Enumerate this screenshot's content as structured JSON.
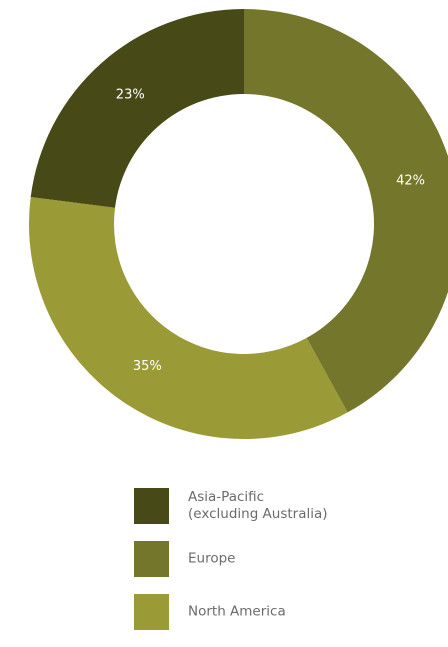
{
  "chart_data": {
    "type": "pie",
    "donut": true,
    "title": "",
    "slices": [
      {
        "label": "Europe",
        "value": 42,
        "value_label": "42%",
        "color": "#73762b"
      },
      {
        "label": "North America",
        "value": 35,
        "value_label": "35%",
        "color": "#9a9a37"
      },
      {
        "label": "Asia-Pacific\n(excluding Australia)",
        "value": 23,
        "value_label": "23%",
        "color": "#474a17"
      }
    ],
    "legend_position": "bottom",
    "legend_order": [
      "Asia-Pacific\n(excluding Australia)",
      "Europe",
      "North America"
    ]
  }
}
